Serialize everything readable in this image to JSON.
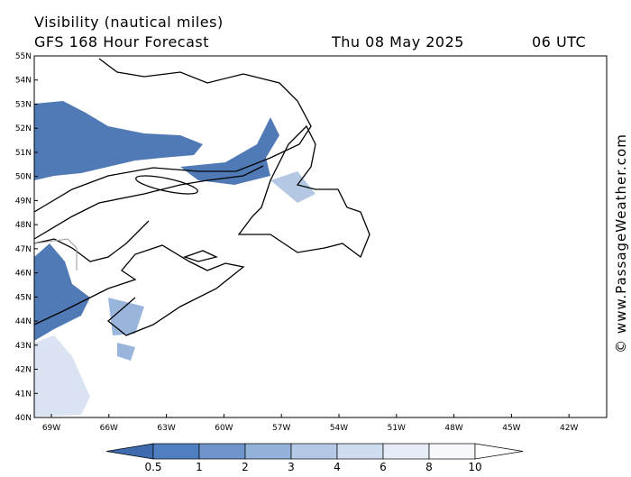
{
  "header": {
    "title": "Visibility (nautical miles)",
    "subtitle": "GFS 168 Hour Forecast",
    "date": "Thu 08 May 2025",
    "time": "06 UTC"
  },
  "map": {
    "lat_labels": [
      "55N",
      "54N",
      "53N",
      "52N",
      "51N",
      "50N",
      "49N",
      "48N",
      "47N",
      "46N",
      "45N",
      "44N",
      "43N",
      "42N",
      "41N",
      "40N"
    ],
    "lon_labels": [
      "69W",
      "66W",
      "63W",
      "60W",
      "57W",
      "54W",
      "51W",
      "48W",
      "45W",
      "42W"
    ]
  },
  "colorbar": {
    "labels": [
      "0.5",
      "1",
      "2",
      "3",
      "4",
      "6",
      "8",
      "10"
    ],
    "colors": [
      "#3d6bae",
      "#4f7fc0",
      "#6f95cc",
      "#94b1d9",
      "#b4c9e5",
      "#cfdcef",
      "#e6edf7",
      "#f6f8fc",
      "#ffffff"
    ]
  },
  "watermark": "© www.PassageWeather.com"
}
